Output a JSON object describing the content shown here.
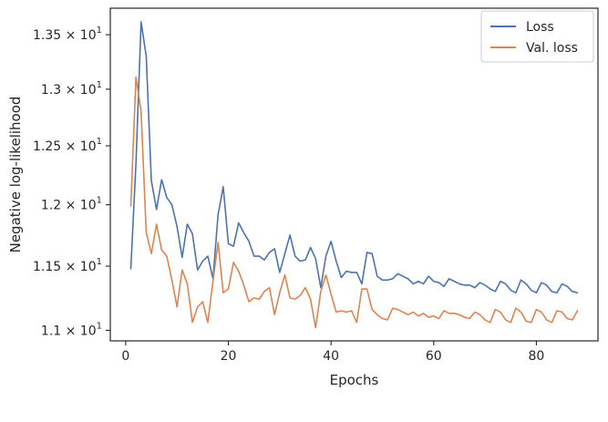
{
  "chart_data": {
    "type": "line",
    "xlabel": "Epochs",
    "ylabel": "Negative log-likelihood",
    "yscale": "log",
    "xlim": [
      -3,
      92
    ],
    "ylim": [
      10.92,
      13.75
    ],
    "x_ticks": [
      0,
      20,
      40,
      60,
      80
    ],
    "y_ticks": [
      11.0,
      11.5,
      12.0,
      12.5,
      13.0,
      13.5
    ],
    "y_tick_labels": [
      {
        "mantissa": "1.1",
        "exp": "1"
      },
      {
        "mantissa": "1.15",
        "exp": "1"
      },
      {
        "mantissa": "1.2",
        "exp": "1"
      },
      {
        "mantissa": "1.25",
        "exp": "1"
      },
      {
        "mantissa": "1.3",
        "exp": "1"
      },
      {
        "mantissa": "1.35",
        "exp": "1"
      }
    ],
    "grid": false,
    "legend_position": "top-right",
    "colors": {
      "Loss": "#4c72b0",
      "Val. loss": "#dd8452",
      "axes": "#262626"
    },
    "x": [
      1,
      2,
      3,
      4,
      5,
      6,
      7,
      8,
      9,
      10,
      11,
      12,
      13,
      14,
      15,
      16,
      17,
      18,
      19,
      20,
      21,
      22,
      23,
      24,
      25,
      26,
      27,
      28,
      29,
      30,
      31,
      32,
      33,
      34,
      35,
      36,
      37,
      38,
      39,
      40,
      41,
      42,
      43,
      44,
      45,
      46,
      47,
      48,
      49,
      50,
      51,
      52,
      53,
      54,
      55,
      56,
      57,
      58,
      59,
      60,
      61,
      62,
      63,
      64,
      65,
      66,
      67,
      68,
      69,
      70,
      71,
      72,
      73,
      74,
      75,
      76,
      77,
      78,
      79,
      80,
      81,
      82,
      83,
      84,
      85,
      86,
      87,
      88
    ],
    "series": [
      {
        "name": "Loss",
        "values": [
          11.48,
          12.35,
          13.62,
          13.3,
          12.2,
          11.96,
          12.21,
          12.06,
          12.0,
          11.82,
          11.57,
          11.84,
          11.76,
          11.47,
          11.54,
          11.58,
          11.4,
          11.92,
          12.15,
          11.68,
          11.66,
          11.85,
          11.77,
          11.7,
          11.58,
          11.58,
          11.55,
          11.61,
          11.64,
          11.45,
          11.6,
          11.75,
          11.58,
          11.54,
          11.55,
          11.65,
          11.56,
          11.33,
          11.58,
          11.7,
          11.54,
          11.41,
          11.46,
          11.45,
          11.45,
          11.36,
          11.61,
          11.6,
          11.42,
          11.39,
          11.39,
          11.4,
          11.44,
          11.42,
          11.4,
          11.36,
          11.38,
          11.36,
          11.42,
          11.38,
          11.37,
          11.34,
          11.4,
          11.38,
          11.36,
          11.35,
          11.35,
          11.33,
          11.37,
          11.35,
          11.32,
          11.3,
          11.38,
          11.36,
          11.31,
          11.29,
          11.39,
          11.36,
          11.31,
          11.29,
          11.37,
          11.35,
          11.3,
          11.29,
          11.36,
          11.34,
          11.3,
          11.29
        ]
      },
      {
        "name": "Val. loss",
        "values": [
          11.99,
          13.11,
          12.8,
          11.77,
          11.6,
          11.84,
          11.63,
          11.58,
          11.39,
          11.18,
          11.47,
          11.36,
          11.06,
          11.18,
          11.22,
          11.06,
          11.38,
          11.69,
          11.29,
          11.32,
          11.53,
          11.46,
          11.35,
          11.22,
          11.25,
          11.24,
          11.3,
          11.33,
          11.12,
          11.29,
          11.43,
          11.25,
          11.24,
          11.27,
          11.33,
          11.24,
          11.02,
          11.3,
          11.43,
          11.28,
          11.14,
          11.15,
          11.14,
          11.15,
          11.06,
          11.32,
          11.32,
          11.16,
          11.12,
          11.09,
          11.08,
          11.17,
          11.16,
          11.14,
          11.12,
          11.14,
          11.11,
          11.13,
          11.1,
          11.11,
          11.09,
          11.15,
          11.13,
          11.13,
          11.12,
          11.1,
          11.09,
          11.14,
          11.12,
          11.08,
          11.06,
          11.16,
          11.14,
          11.08,
          11.06,
          11.17,
          11.14,
          11.07,
          11.06,
          11.16,
          11.14,
          11.08,
          11.06,
          11.15,
          11.14,
          11.09,
          11.08,
          11.15
        ]
      }
    ]
  }
}
